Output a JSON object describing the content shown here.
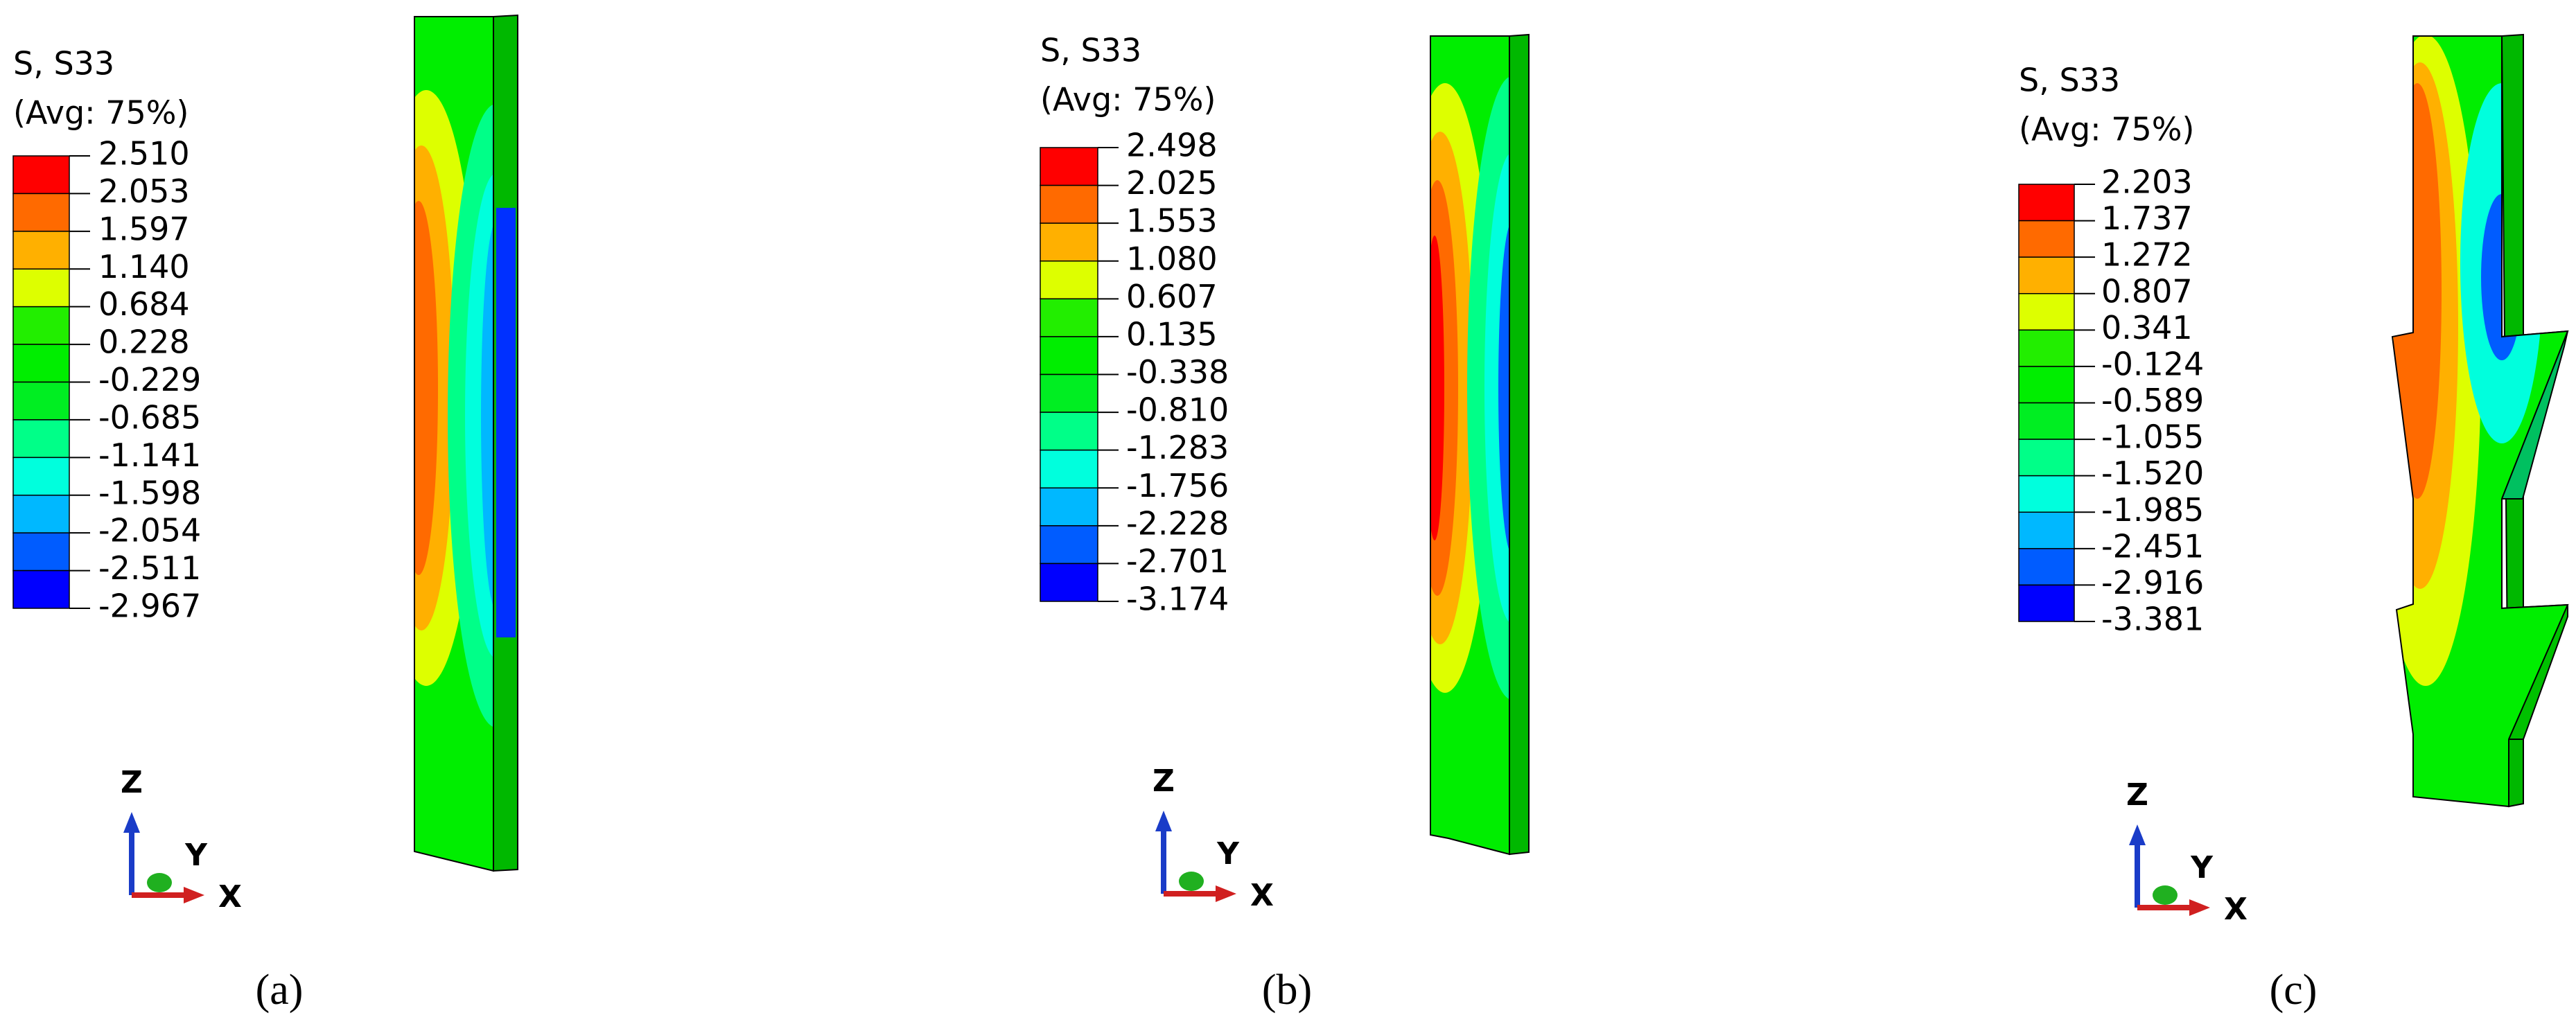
{
  "band_colors": [
    "#ff0000",
    "#ff6a00",
    "#ffb000",
    "#ddff00",
    "#22ee00",
    "#00ee00",
    "#00ee22",
    "#00ff88",
    "#00ffdd",
    "#00b8ff",
    "#005cff",
    "#0000ff"
  ],
  "panels": [
    {
      "legend_title": [
        "S, S33",
        "(Avg: 75%)"
      ],
      "legend_values": [
        "2.510",
        "2.053",
        "1.597",
        "1.140",
        "0.684",
        "0.228",
        "-0.229",
        "-0.685",
        "-1.141",
        "-1.598",
        "-2.054",
        "-2.511",
        "-2.967"
      ],
      "triad": {
        "z": "Z",
        "y": "Y",
        "x": "X"
      },
      "caption": "(a)"
    },
    {
      "legend_title": [
        "S, S33",
        "(Avg: 75%)"
      ],
      "legend_values": [
        "2.498",
        "2.025",
        "1.553",
        "1.080",
        "0.607",
        "0.135",
        "-0.338",
        "-0.810",
        "-1.283",
        "-1.756",
        "-2.228",
        "-2.701",
        "-3.174"
      ],
      "triad": {
        "z": "Z",
        "y": "Y",
        "x": "X"
      },
      "caption": "(b)"
    },
    {
      "legend_title": [
        "S, S33",
        "(Avg: 75%)"
      ],
      "legend_values": [
        "2.203",
        "1.737",
        "1.272",
        "0.807",
        "0.341",
        "-0.124",
        "-0.589",
        "-1.055",
        "-1.520",
        "-1.985",
        "-2.451",
        "-2.916",
        "-3.381"
      ],
      "triad": {
        "z": "Z",
        "y": "Y",
        "x": "X"
      },
      "caption": "(c)"
    }
  ]
}
